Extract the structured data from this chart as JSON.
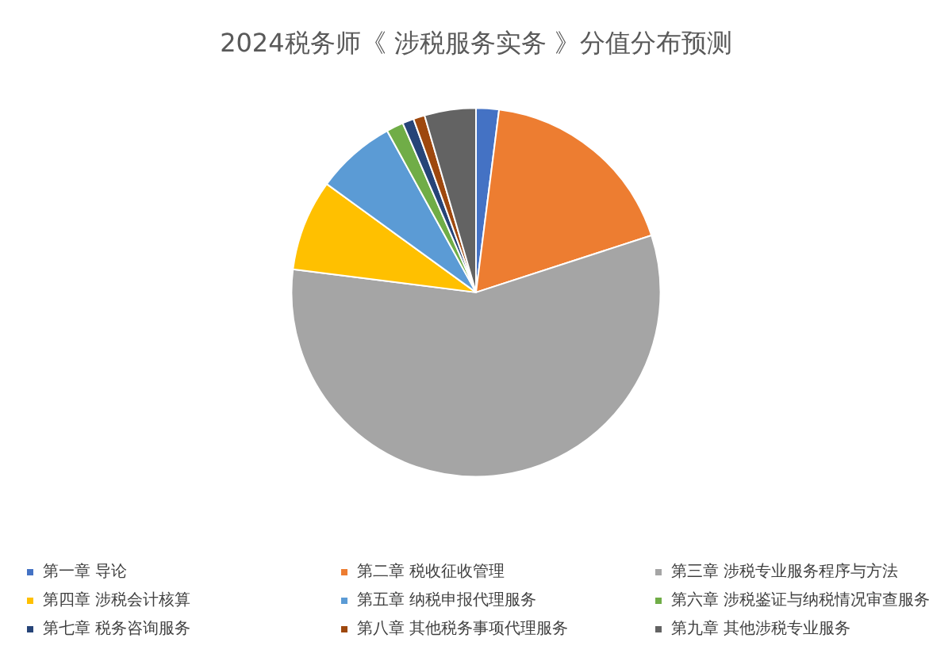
{
  "chart_data": {
    "type": "pie",
    "title": "2024税务师《 涉税服务实务 》分值分布预测",
    "categories": [
      "第一章 导论",
      "第二章 税收征收管理",
      "第三章 涉税专业服务程序与方法",
      "第四章 涉税会计核算",
      "第五章 纳税申报代理服务",
      "第六章 涉税鉴证与纳税情况审查服务",
      "第七章 税务咨询服务",
      "第八章 其他税务事项代理服务",
      "第九章 其他涉税专业服务"
    ],
    "values": [
      2,
      18,
      57,
      8,
      7,
      1.5,
      1,
      1,
      4.5
    ],
    "colors": [
      "#4472c4",
      "#ed7d31",
      "#a5a5a5",
      "#ffc000",
      "#5b9bd5",
      "#70ad47",
      "#264478",
      "#9e480e",
      "#636363"
    ],
    "legend": "bottom"
  }
}
